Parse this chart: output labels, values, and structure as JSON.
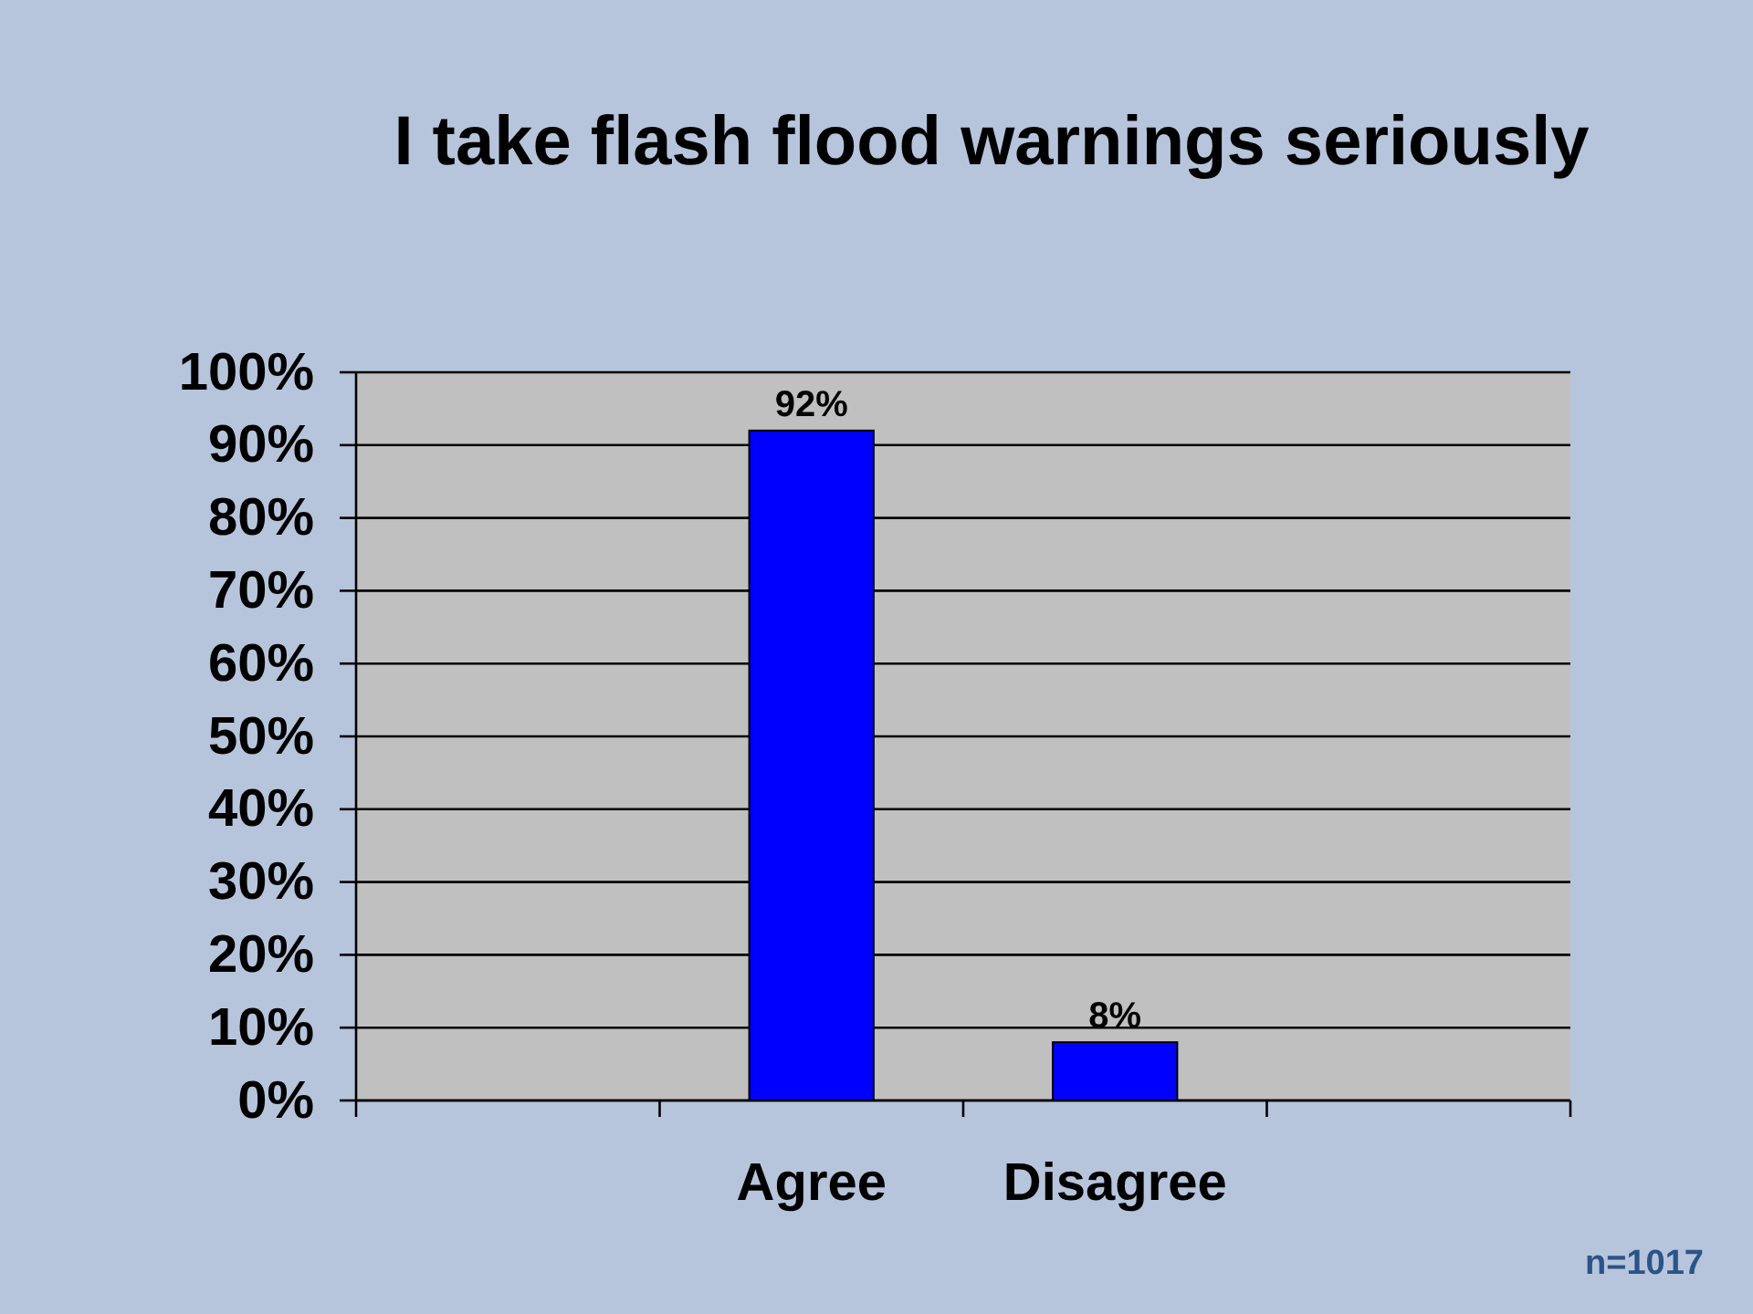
{
  "chart_data": {
    "type": "bar",
    "title": "I take flash flood warnings seriously",
    "categories": [
      null,
      "Agree",
      "Disagree",
      null
    ],
    "values": [
      null,
      92,
      8,
      null
    ],
    "value_labels": [
      null,
      "92%",
      "8%",
      null
    ],
    "color": "#0000ff",
    "ylim": [
      0,
      100
    ],
    "yticks": [
      {
        "value": 0,
        "label": "0%"
      },
      {
        "value": 10,
        "label": "10%"
      },
      {
        "value": 20,
        "label": "20%"
      },
      {
        "value": 30,
        "label": "30%"
      },
      {
        "value": 40,
        "label": "40%"
      },
      {
        "value": 50,
        "label": "50%"
      },
      {
        "value": 60,
        "label": "60%"
      },
      {
        "value": 70,
        "label": "70%"
      },
      {
        "value": 80,
        "label": "80%"
      },
      {
        "value": 90,
        "label": "90%"
      },
      {
        "value": 100,
        "label": "100%"
      }
    ],
    "grid": "y",
    "annotations": [
      "n=1017"
    ]
  }
}
